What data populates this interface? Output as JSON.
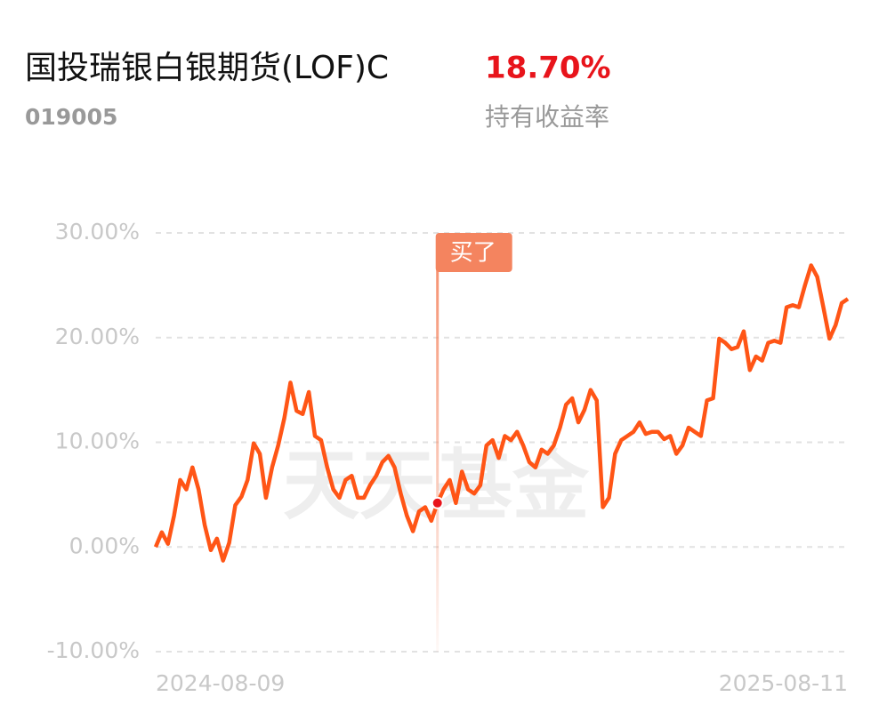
{
  "header": {
    "fund_name": "国投瑞银白银期货(LOF)C",
    "fund_code": "019005",
    "return_value": "18.70%",
    "return_label": "持有收益率"
  },
  "watermark": "天天基金",
  "chart_data": {
    "type": "line",
    "categories": [
      "2024-08-09",
      null,
      null,
      null,
      null,
      null,
      null,
      null,
      null,
      null,
      null,
      null,
      null,
      null,
      null,
      null,
      null,
      null,
      null,
      null,
      null,
      null,
      null,
      null,
      null,
      null,
      null,
      null,
      null,
      null,
      null,
      null,
      null,
      null,
      null,
      null,
      null,
      null,
      null,
      null,
      null,
      null,
      null,
      null,
      null,
      null,
      null,
      null,
      null,
      null,
      null,
      null,
      null,
      null,
      null,
      null,
      null,
      null,
      null,
      null,
      null,
      null,
      null,
      null,
      null,
      null,
      null,
      null,
      null,
      null,
      null,
      null,
      null,
      null,
      null,
      null,
      null,
      null,
      null,
      null,
      null,
      null,
      null,
      null,
      null,
      null,
      null,
      null,
      null,
      null,
      null,
      null,
      null,
      null,
      null,
      null,
      null,
      null,
      null,
      null,
      null,
      null,
      null,
      null,
      null,
      null,
      null,
      null,
      null,
      null,
      null,
      null,
      null,
      "2025-08-11"
    ],
    "series": [
      {
        "name": "持有收益率",
        "color": "#ff5516",
        "values": [
          0,
          1.4,
          0.3,
          3,
          6.4,
          5.5,
          7.6,
          5.5,
          2.1,
          -0.3,
          0.8,
          -1.3,
          0.4,
          4,
          4.8,
          6.4,
          9.9,
          8.9,
          4.7,
          7.6,
          9.7,
          12.3,
          15.7,
          13,
          12.7,
          14.8,
          10.6,
          10.2,
          7.6,
          5.5,
          4.7,
          6.4,
          6.8,
          4.7,
          4.7,
          5.9,
          6.8,
          8.1,
          8.7,
          7.6,
          5.1,
          3,
          1.5,
          3.4,
          3.8,
          2.5,
          4.2,
          5.5,
          6.4,
          4.2,
          7.2,
          5.5,
          5.1,
          5.9,
          9.7,
          10.2,
          8.5,
          10.6,
          10.2,
          11,
          9.7,
          8.1,
          7.6,
          9.3,
          8.9,
          9.7,
          11.4,
          13.6,
          14.2,
          11.9,
          13.1,
          15,
          14,
          3.8,
          4.7,
          8.9,
          10.2,
          10.6,
          11,
          11.9,
          10.8,
          11,
          11,
          10.3,
          10.6,
          8.9,
          9.7,
          11.4,
          11,
          10.6,
          14,
          14.2,
          19.9,
          19.5,
          18.9,
          19.1,
          20.6,
          16.9,
          18.2,
          17.8,
          19.5,
          19.7,
          19.5,
          22.9,
          23.1,
          22.9,
          25,
          26.9,
          25.8,
          22.9,
          19.9,
          21.2,
          23.3,
          23.7
        ]
      }
    ],
    "ylim": [
      -10,
      30
    ],
    "yticks": [
      {
        "value": -10,
        "label": "-10.00%"
      },
      {
        "value": 0,
        "label": "0.00%"
      },
      {
        "value": 10,
        "label": "10.00%"
      },
      {
        "value": 20,
        "label": "20.00%"
      },
      {
        "value": 30,
        "label": "30.00%"
      }
    ],
    "grid": true,
    "annotation": {
      "text": "买了",
      "index": 46
    }
  }
}
